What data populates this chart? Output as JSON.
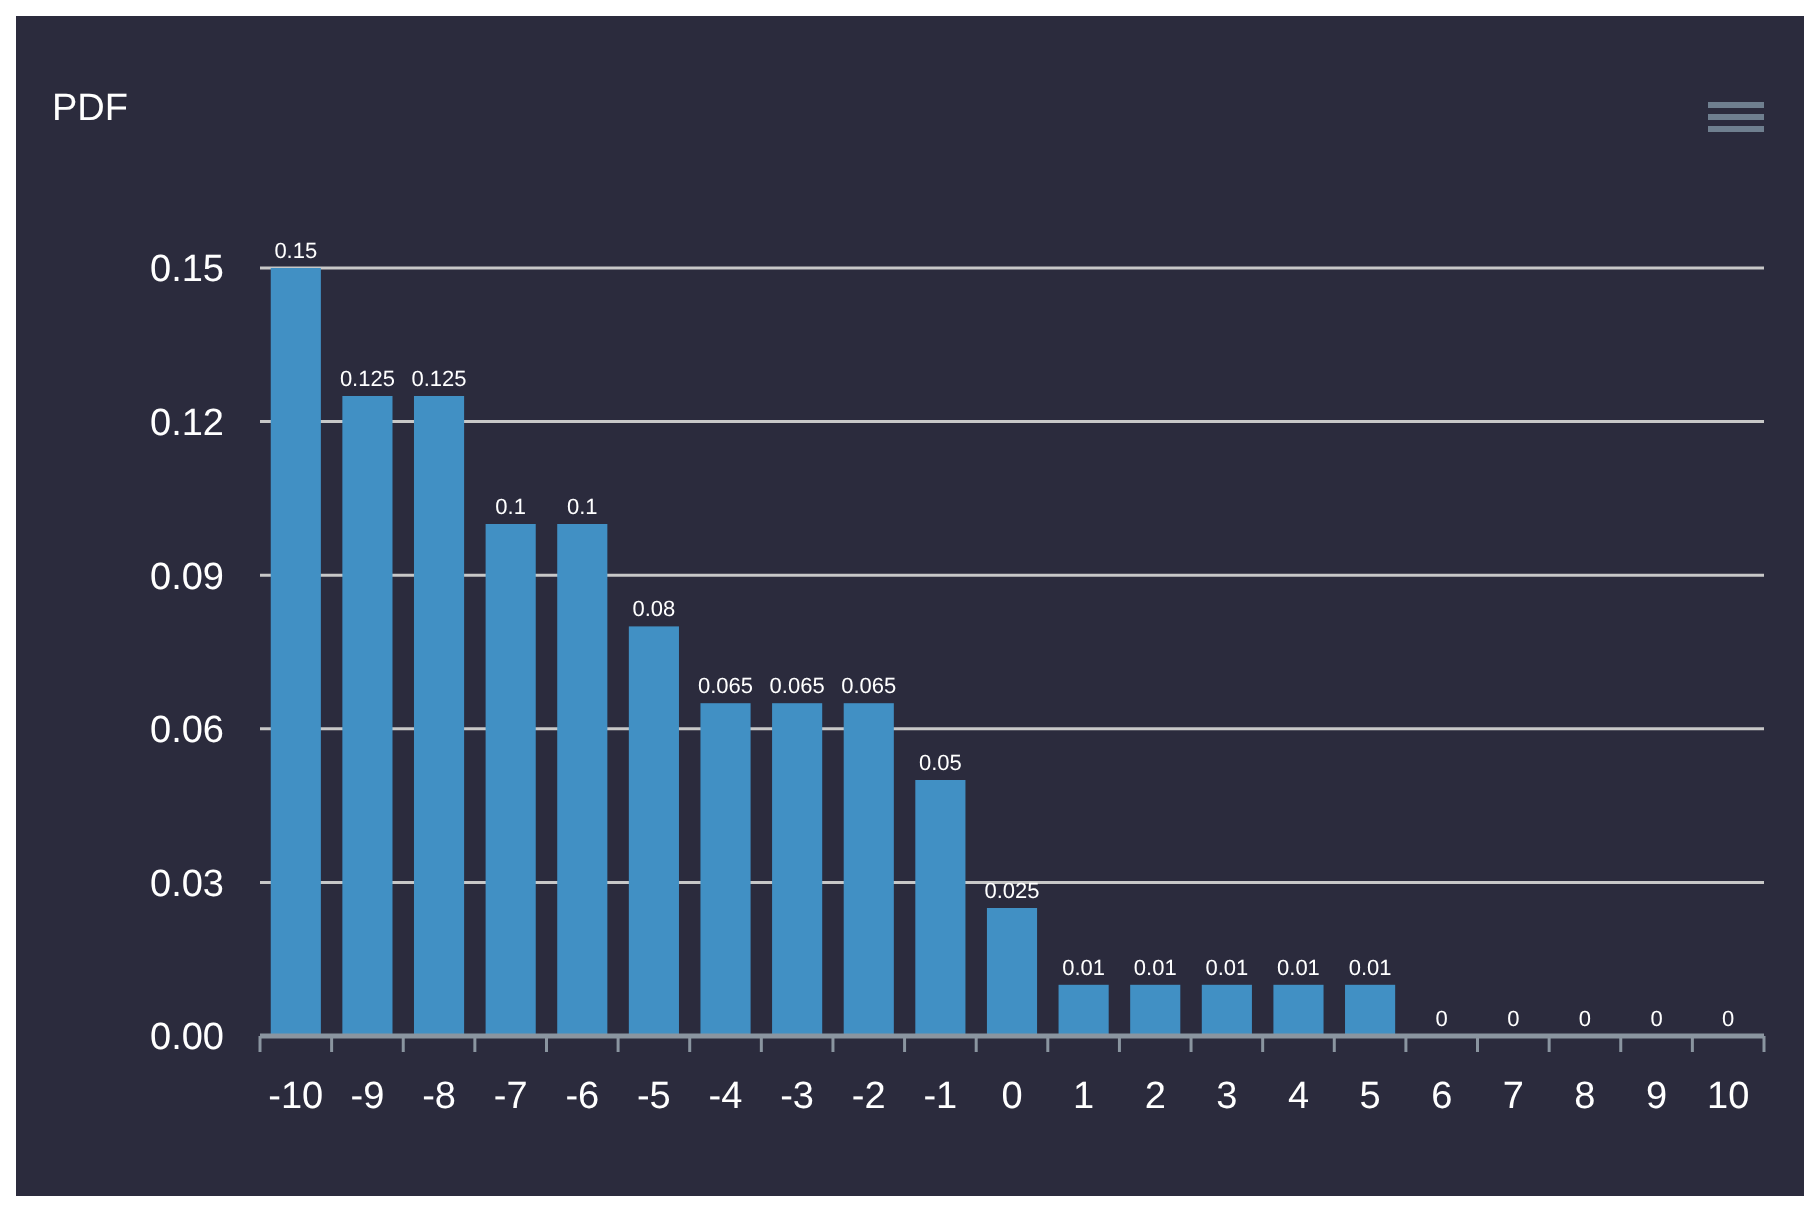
{
  "chart_data": {
    "type": "bar",
    "title": "PDF",
    "categories": [
      "-10",
      "-9",
      "-8",
      "-7",
      "-6",
      "-5",
      "-4",
      "-3",
      "-2",
      "-1",
      "0",
      "1",
      "2",
      "3",
      "4",
      "5",
      "6",
      "7",
      "8",
      "9",
      "10"
    ],
    "values": [
      0.15,
      0.125,
      0.125,
      0.1,
      0.1,
      0.08,
      0.065,
      0.065,
      0.065,
      0.05,
      0.025,
      0.01,
      0.01,
      0.01,
      0.01,
      0.01,
      0,
      0,
      0,
      0,
      0
    ],
    "color": "#4190c4",
    "ylim": [
      0,
      0.15
    ],
    "yticks": [
      {
        "value": 0,
        "label": "0.00"
      },
      {
        "value": 0.03,
        "label": "0.03"
      },
      {
        "value": 0.06,
        "label": "0.06"
      },
      {
        "value": 0.09,
        "label": "0.09"
      },
      {
        "value": 0.12,
        "label": "0.12"
      },
      {
        "value": 0.15,
        "label": "0.15"
      }
    ],
    "grid": "y",
    "data_labels": true
  }
}
